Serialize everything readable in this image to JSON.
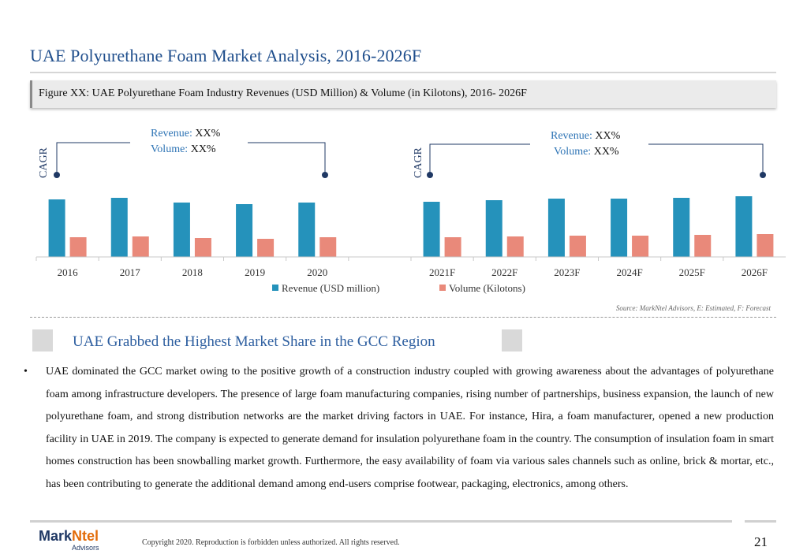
{
  "header": {
    "title": "UAE Polyurethane Foam Market Analysis, 2016-2026F",
    "figure_caption": "Figure XX: UAE Polyurethane Foam Industry Revenues (USD Million) & Volume (in Kilotons), 2016- 2026F"
  },
  "annotations": {
    "left": {
      "cagr": "CAGR",
      "revenue_key": "Revenue:",
      "revenue_val": " XX%",
      "volume_key": "Volume:",
      "volume_val": " XX%"
    },
    "right": {
      "cagr": "CAGR",
      "revenue_key": "Revenue:",
      "revenue_val": " XX%",
      "volume_key": "Volume:",
      "volume_val": " XX%"
    }
  },
  "chart_data": {
    "type": "bar",
    "categories": [
      "2016",
      "2017",
      "2018",
      "2019",
      "2020",
      "",
      "2021F",
      "2022F",
      "2023F",
      "2024F",
      "2025F",
      "2026F"
    ],
    "series": [
      {
        "name": "Revenue (USD million)",
        "color": "#2592bb",
        "values": [
          73,
          75,
          69,
          67,
          69,
          null,
          70,
          72,
          74,
          74,
          75,
          77
        ]
      },
      {
        "name": "Volume (Kilotons)",
        "color": "#e9897a",
        "values": [
          25,
          26,
          24,
          23,
          25,
          null,
          25,
          26,
          27,
          27,
          28,
          29
        ]
      }
    ],
    "ylim": [
      0,
      100
    ],
    "grid": false,
    "legend_position": "bottom"
  },
  "source": "Source: MarkNtel Advisors, E: Estimated, F: Forecast",
  "section": {
    "heading": "UAE Grabbed the Highest Market Share in the GCC Region",
    "bullet": "•",
    "paragraph": "UAE dominated the GCC market owing to the positive growth of a construction industry coupled with growing awareness about the advantages of polyurethane foam among infrastructure developers. The presence of large foam manufacturing companies, rising number of partnerships, business expansion, the launch of new polyurethane foam, and strong distribution networks are the market driving factors in UAE. For instance, Hira, a foam manufacturer, opened a new production facility in UAE in 2019. The company is expected to generate demand for insulation polyurethane foam in the country. The consumption of insulation foam in smart homes construction has been snowballing market growth. Furthermore, the easy availability of foam via various sales channels such as online, brick & mortar, etc., has been contributing to generate the additional demand among end-users comprise footwear, packaging, electronics, among others."
  },
  "footer": {
    "brand_a": "Mark",
    "brand_b": "Ntel",
    "brand_sub": "Advisors",
    "copyright": "Copyright 2020. Reproduction is forbidden unless authorized. All rights reserved.",
    "page_number": "21"
  }
}
